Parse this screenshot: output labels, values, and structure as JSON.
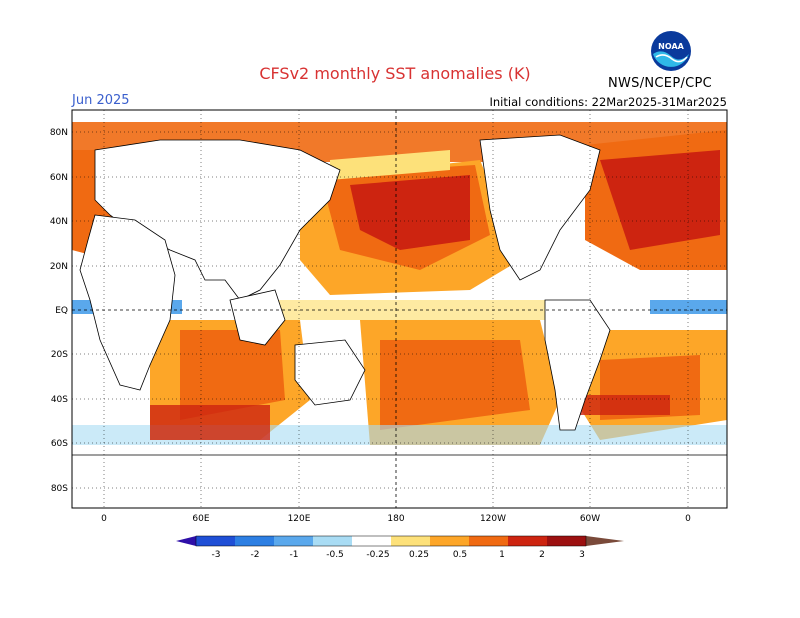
{
  "header": {
    "title": "CFSv2 monthly SST anomalies (K)",
    "month": "Jun 2025",
    "initial_conditions": "Initial conditions: 22Mar2025-31Mar2025",
    "agency": "NWS/NCEP/CPC",
    "logo_text": "NOAA"
  },
  "map": {
    "lat_labels": [
      "80N",
      "60N",
      "40N",
      "20N",
      "EQ",
      "20S",
      "40S",
      "60S",
      "80S"
    ],
    "lon_labels": [
      "0",
      "60E",
      "120E",
      "180",
      "120W",
      "60W",
      "0"
    ]
  },
  "colorbar": {
    "ticks": [
      "-3",
      "-2",
      "-1",
      "-0.5",
      "-0.25",
      "0.25",
      "0.5",
      "1",
      "2",
      "3"
    ],
    "colors": [
      "#2e0fa8",
      "#1f4fd6",
      "#2d7fe3",
      "#5aa8ec",
      "#a9dcf4",
      "#ffffff",
      "#fde17a",
      "#fda628",
      "#f06a12",
      "#cd2410",
      "#9c1010",
      "#7a4a3a"
    ]
  }
}
